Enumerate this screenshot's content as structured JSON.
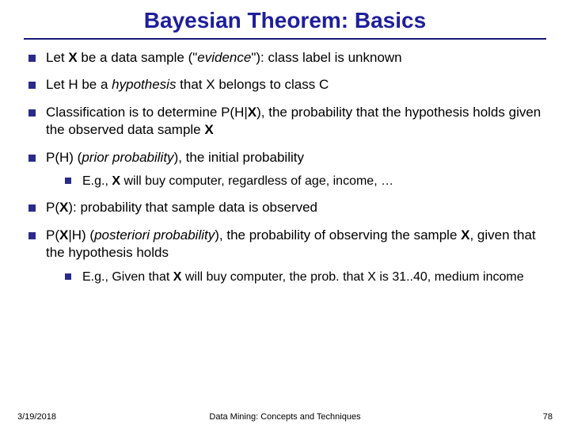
{
  "title": "Bayesian Theorem: Basics",
  "bullets": {
    "b1_pre": "Let ",
    "b1_x": "X",
    "b1_mid": " be a data sample (\"",
    "b1_ev": "evidence",
    "b1_post": "\"): class label is unknown",
    "b2_pre": "Let H be a ",
    "b2_hyp": "hypothesis",
    "b2_post": " that X belongs to class C",
    "b3_a": "Classification is to determine P(H|",
    "b3_x": "X",
    "b3_b": "), the probability that the hypothesis holds given the observed data sample ",
    "b3_x2": "X",
    "b4_a": "P(H) (",
    "b4_pp": "prior probability",
    "b4_b": "), the initial probability",
    "b4s_a": "E.g., ",
    "b4s_x": "X",
    "b4s_b": " will buy computer, regardless of age, income, …",
    "b5_a": "P(",
    "b5_x": "X",
    "b5_b": "): probability that sample data is observed",
    "b6_a": "P(",
    "b6_x": "X",
    "b6_b": "|H) (",
    "b6_pp": "posteriori probability",
    "b6_c": "), the probability of observing the sample ",
    "b6_x2": "X",
    "b6_d": ", given that the hypothesis holds",
    "b6s_a": "E.g., Given that ",
    "b6s_x": "X",
    "b6s_b": " will buy computer, the prob. that X is 31..40, medium income"
  },
  "footer": {
    "date": "3/19/2018",
    "center": "Data Mining: Concepts and Techniques",
    "page": "78"
  },
  "colors": {
    "title": "#1e1e9c",
    "bullet": "#2a2a8a",
    "underline": "#1a1a7a",
    "bg": "#ffffff"
  },
  "fontsize": {
    "title": 28,
    "body": 17,
    "sub": 16,
    "footer": 11
  }
}
